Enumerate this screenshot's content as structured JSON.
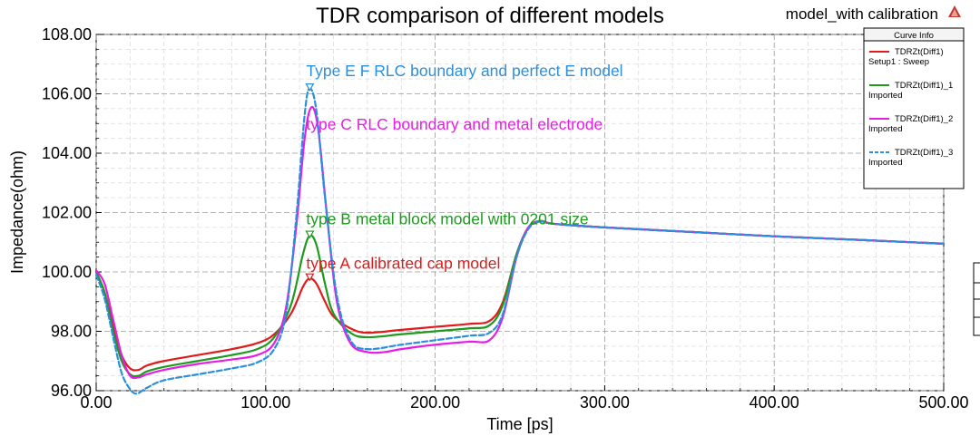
{
  "chart_data": {
    "type": "line",
    "title": "TDR comparison of different models",
    "subtitle": "model_with calibration",
    "xlabel": "Time [ps]",
    "ylabel": "Impedance(ohm)",
    "xlim": [
      0,
      500
    ],
    "ylim": [
      96,
      108
    ],
    "x_ticks": [
      "0.00",
      "100.00",
      "200.00",
      "300.00",
      "400.00",
      "500.00"
    ],
    "y_ticks": [
      "96.00",
      "98.00",
      "100.00",
      "102.00",
      "104.00",
      "106.00",
      "108.00"
    ],
    "grid": true,
    "legend": {
      "title": "Curve Info",
      "position": "top-right",
      "entries": [
        {
          "line1": "TDRZt(Diff1)",
          "line2": "Setup1 : Sweep"
        },
        {
          "line1": "TDRZt(Diff1)_1",
          "line2": "Imported"
        },
        {
          "line1": "TDRZt(Diff1)_2",
          "line2": "Imported"
        },
        {
          "line1": "TDRZt(Diff1)_3",
          "line2": "Imported"
        }
      ]
    },
    "series": [
      {
        "name": "TDRZt(Diff1)",
        "color": "#e01b1b",
        "dash": "solid",
        "points": [
          [
            0,
            100.0
          ],
          [
            5,
            99.3
          ],
          [
            10,
            98.2
          ],
          [
            15,
            97.2
          ],
          [
            20,
            96.75
          ],
          [
            25,
            96.7
          ],
          [
            30,
            96.85
          ],
          [
            40,
            97.0
          ],
          [
            60,
            97.2
          ],
          [
            80,
            97.4
          ],
          [
            95,
            97.6
          ],
          [
            105,
            97.9
          ],
          [
            115,
            98.6
          ],
          [
            122,
            99.5
          ],
          [
            126,
            99.78
          ],
          [
            130,
            99.6
          ],
          [
            135,
            99.0
          ],
          [
            140,
            98.5
          ],
          [
            150,
            98.1
          ],
          [
            160,
            97.95
          ],
          [
            180,
            98.05
          ],
          [
            200,
            98.15
          ],
          [
            220,
            98.25
          ],
          [
            232,
            98.35
          ],
          [
            240,
            99.0
          ],
          [
            248,
            100.6
          ],
          [
            255,
            101.5
          ],
          [
            262,
            101.7
          ],
          [
            270,
            101.62
          ],
          [
            300,
            101.5
          ],
          [
            350,
            101.35
          ],
          [
            400,
            101.2
          ],
          [
            450,
            101.08
          ],
          [
            500,
            100.95
          ]
        ]
      },
      {
        "name": "TDRZt(Diff1)_1",
        "color": "#1f9a1f",
        "dash": "solid",
        "points": [
          [
            0,
            100.0
          ],
          [
            5,
            99.3
          ],
          [
            10,
            98.0
          ],
          [
            15,
            97.0
          ],
          [
            20,
            96.55
          ],
          [
            25,
            96.5
          ],
          [
            30,
            96.65
          ],
          [
            40,
            96.8
          ],
          [
            60,
            97.0
          ],
          [
            80,
            97.2
          ],
          [
            95,
            97.4
          ],
          [
            105,
            97.8
          ],
          [
            115,
            98.9
          ],
          [
            122,
            100.6
          ],
          [
            126,
            101.22
          ],
          [
            130,
            100.9
          ],
          [
            135,
            99.6
          ],
          [
            140,
            98.6
          ],
          [
            150,
            97.95
          ],
          [
            160,
            97.8
          ],
          [
            180,
            97.9
          ],
          [
            200,
            98.0
          ],
          [
            220,
            98.1
          ],
          [
            232,
            98.2
          ],
          [
            240,
            98.9
          ],
          [
            248,
            100.6
          ],
          [
            255,
            101.5
          ],
          [
            262,
            101.72
          ],
          [
            270,
            101.62
          ],
          [
            300,
            101.5
          ],
          [
            350,
            101.35
          ],
          [
            400,
            101.2
          ],
          [
            450,
            101.08
          ],
          [
            500,
            100.95
          ]
        ]
      },
      {
        "name": "TDRZt(Diff1)_2",
        "color": "#e51ee5",
        "dash": "solid",
        "points": [
          [
            0,
            100.05
          ],
          [
            5,
            99.6
          ],
          [
            10,
            98.4
          ],
          [
            15,
            97.2
          ],
          [
            20,
            96.5
          ],
          [
            25,
            96.45
          ],
          [
            30,
            96.55
          ],
          [
            40,
            96.7
          ],
          [
            60,
            96.9
          ],
          [
            80,
            97.05
          ],
          [
            95,
            97.2
          ],
          [
            105,
            97.6
          ],
          [
            112,
            98.8
          ],
          [
            118,
            101.5
          ],
          [
            123,
            104.5
          ],
          [
            127,
            105.55
          ],
          [
            131,
            104.8
          ],
          [
            136,
            102.0
          ],
          [
            142,
            99.0
          ],
          [
            150,
            97.6
          ],
          [
            160,
            97.3
          ],
          [
            170,
            97.3
          ],
          [
            180,
            97.4
          ],
          [
            200,
            97.55
          ],
          [
            220,
            97.65
          ],
          [
            232,
            97.7
          ],
          [
            240,
            98.5
          ],
          [
            248,
            100.5
          ],
          [
            255,
            101.5
          ],
          [
            262,
            101.7
          ],
          [
            270,
            101.62
          ],
          [
            300,
            101.5
          ],
          [
            350,
            101.35
          ],
          [
            400,
            101.2
          ],
          [
            450,
            101.08
          ],
          [
            500,
            100.95
          ]
        ]
      },
      {
        "name": "TDRZt(Diff1)_3",
        "color": "#2a8fdc",
        "dash": "dashed",
        "points": [
          [
            0,
            99.9
          ],
          [
            5,
            99.1
          ],
          [
            10,
            97.8
          ],
          [
            15,
            96.6
          ],
          [
            20,
            96.05
          ],
          [
            24,
            95.9
          ],
          [
            30,
            96.1
          ],
          [
            40,
            96.35
          ],
          [
            60,
            96.55
          ],
          [
            80,
            96.75
          ],
          [
            95,
            96.95
          ],
          [
            105,
            97.4
          ],
          [
            112,
            98.6
          ],
          [
            118,
            101.8
          ],
          [
            123,
            105.3
          ],
          [
            126,
            106.18
          ],
          [
            130,
            105.4
          ],
          [
            135,
            102.5
          ],
          [
            142,
            99.2
          ],
          [
            150,
            97.7
          ],
          [
            160,
            97.4
          ],
          [
            180,
            97.55
          ],
          [
            200,
            97.7
          ],
          [
            220,
            97.85
          ],
          [
            232,
            97.95
          ],
          [
            240,
            98.6
          ],
          [
            248,
            100.5
          ],
          [
            255,
            101.45
          ],
          [
            262,
            101.7
          ],
          [
            270,
            101.62
          ],
          [
            300,
            101.5
          ],
          [
            350,
            101.35
          ],
          [
            400,
            101.2
          ],
          [
            450,
            101.08
          ],
          [
            500,
            100.95
          ]
        ]
      }
    ],
    "markers": [
      {
        "series": 0,
        "x": 126,
        "y": 99.78
      },
      {
        "series": 1,
        "x": 126,
        "y": 101.22
      },
      {
        "series": 3,
        "x": 126,
        "y": 106.18
      }
    ],
    "annotations": [
      {
        "text": "Type E F RLC boundary and perfect E model",
        "x": 126,
        "y": 106.6,
        "color": "#2a8fdc"
      },
      {
        "text": "type C RLC boundary and metal electrode",
        "x": 126,
        "y": 104.8,
        "color": "#e51ee5"
      },
      {
        "text": "type B metal block model with 0201 size",
        "x": 126,
        "y": 101.6,
        "color": "#1f9a1f"
      },
      {
        "text": "type A calibrated cap model",
        "x": 126,
        "y": 100.1,
        "color": "#e01b1b"
      }
    ]
  }
}
